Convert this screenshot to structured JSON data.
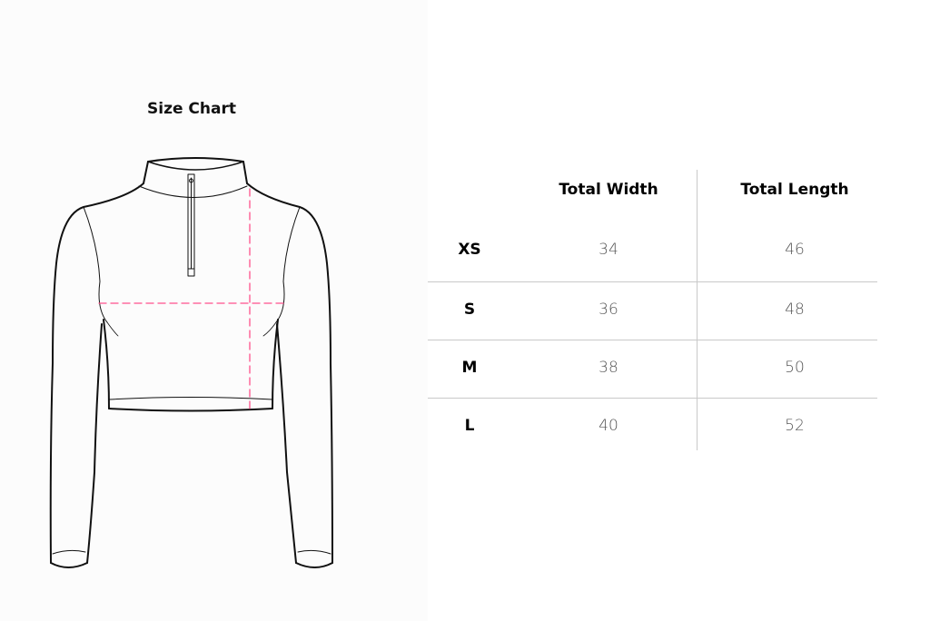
{
  "title": "Size Chart",
  "accent_color": "#ff4f8b",
  "table": {
    "headers": [
      "",
      "Total Width",
      "Total Length"
    ],
    "rows": [
      {
        "size": "XS",
        "width": "34",
        "length": "46"
      },
      {
        "size": "S",
        "width": "36",
        "length": "48"
      },
      {
        "size": "M",
        "width": "38",
        "length": "50"
      },
      {
        "size": "L",
        "width": "40",
        "length": "52"
      }
    ]
  }
}
